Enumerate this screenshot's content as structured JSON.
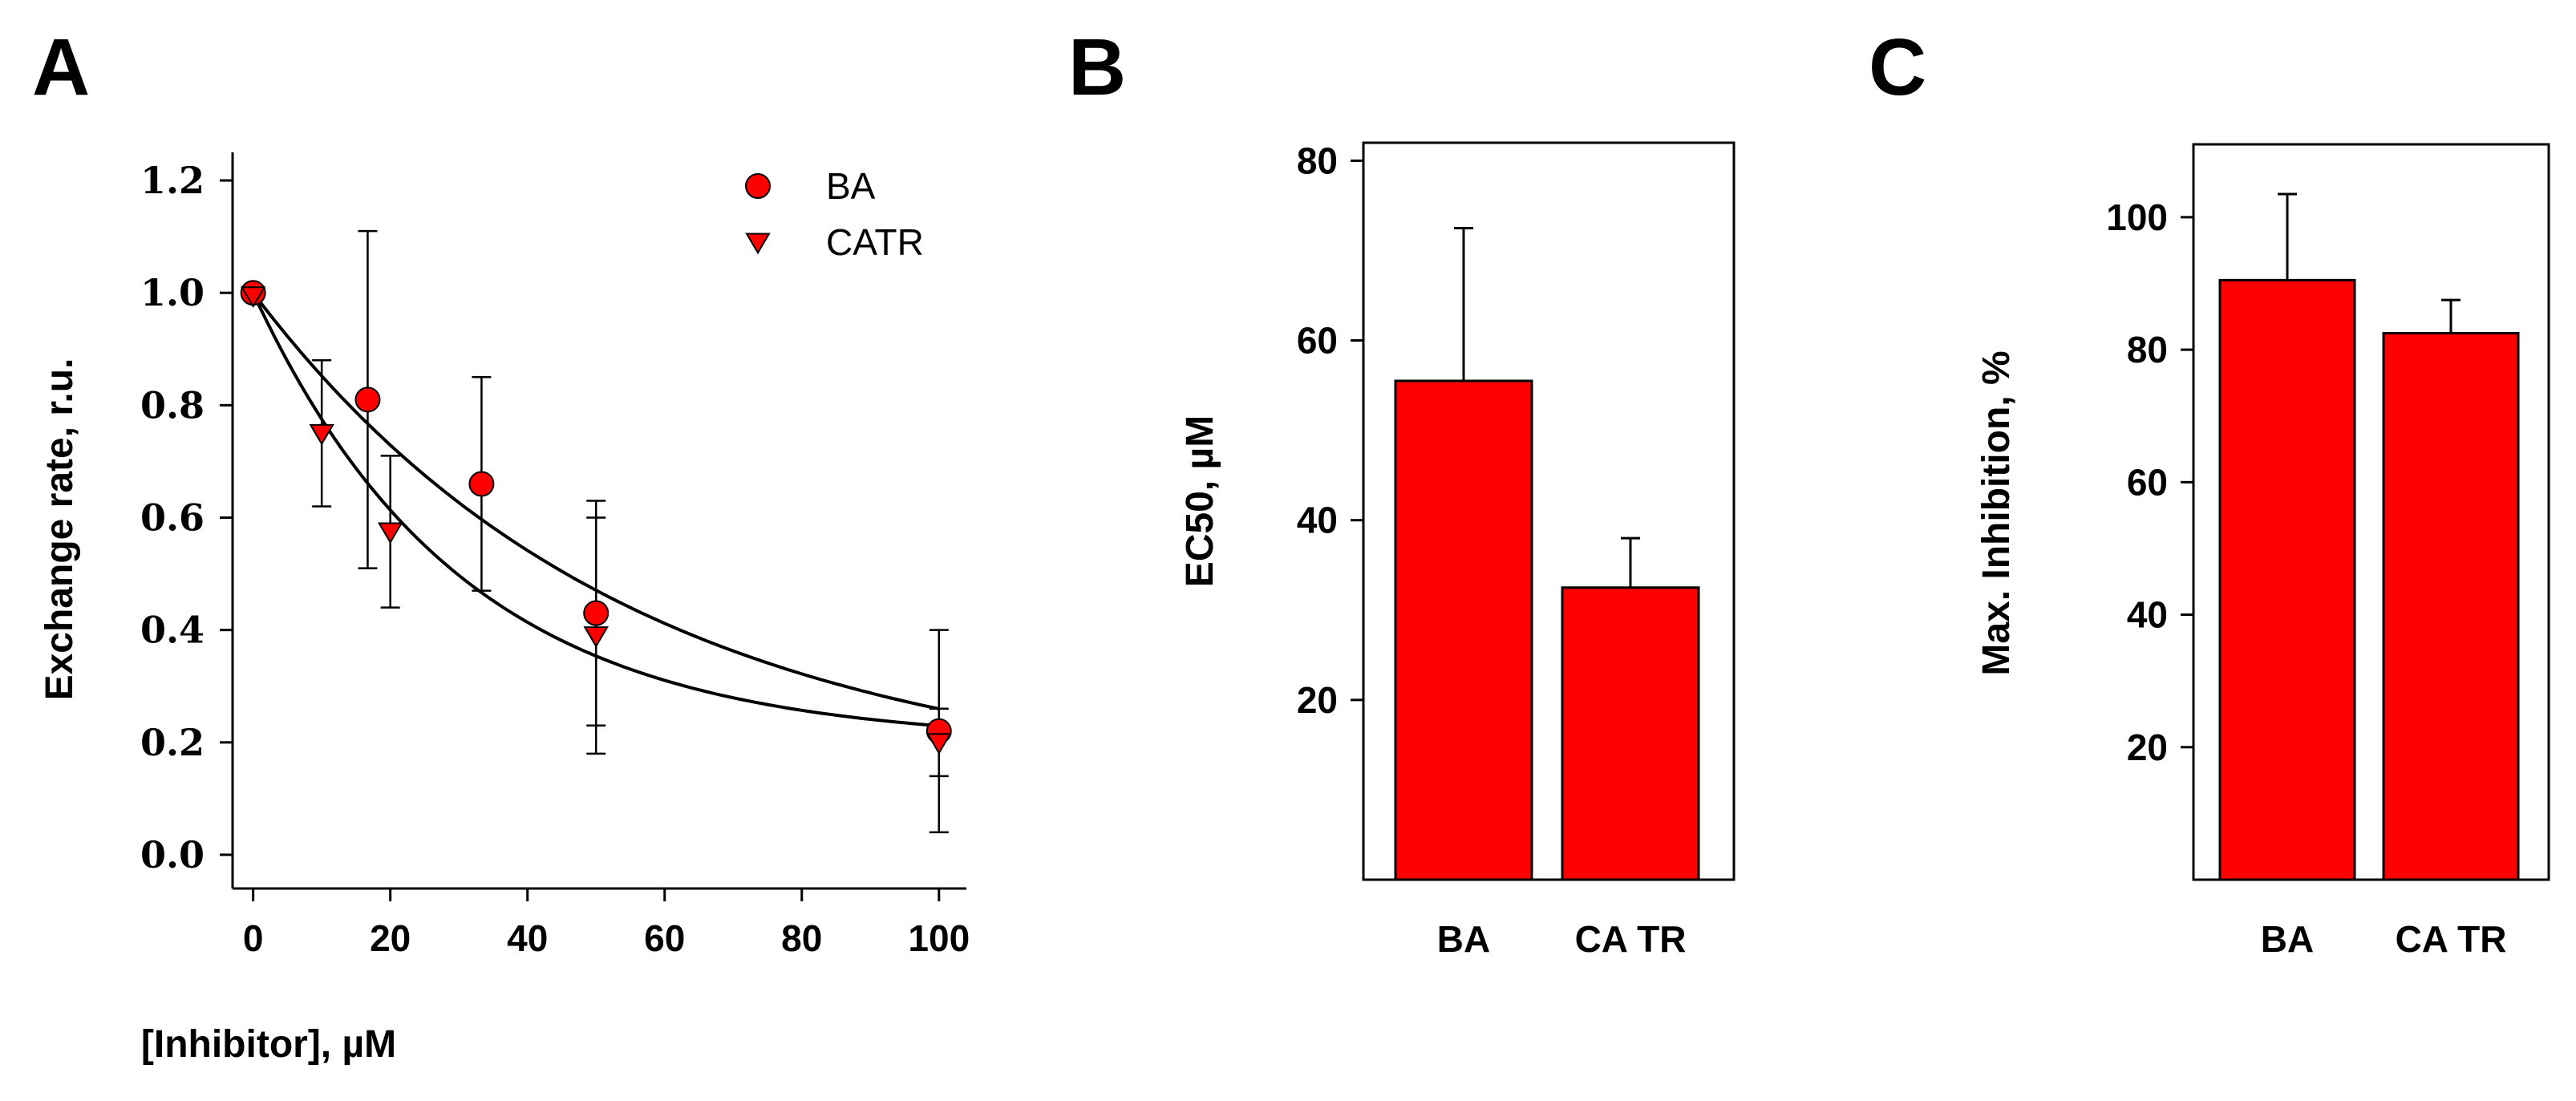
{
  "colors": {
    "marker": "#ff0000",
    "bar": "#ff0000",
    "axis": "#000000"
  },
  "chart_data": [
    {
      "panel": "A",
      "type": "scatter",
      "title": "",
      "xlabel": "[Inhibitor], µM",
      "ylabel": "Exchange rate, r.u.",
      "xlim": [
        -3,
        104
      ],
      "ylim": [
        -0.06,
        1.25
      ],
      "xticks": [
        "0",
        "20",
        "40",
        "60",
        "80",
        "100"
      ],
      "yticks": [
        "0.0",
        "0.2",
        "0.4",
        "0.6",
        "0.8",
        "1.0",
        "1.2"
      ],
      "legend_position": "top-right",
      "grid": false,
      "series": [
        {
          "name": "BA",
          "marker": "circle",
          "points": [
            {
              "x": 0,
              "y": 1.0,
              "err": 0
            },
            {
              "x": 16.7,
              "y": 0.81,
              "err": 0.3
            },
            {
              "x": 33.3,
              "y": 0.66,
              "err": 0.19
            },
            {
              "x": 50,
              "y": 0.43,
              "err": 0.2
            },
            {
              "x": 100,
              "y": 0.22,
              "err": 0.18
            }
          ],
          "fit": {
            "a": 0.88,
            "b": 0.12,
            "k": 0.0184
          }
        },
        {
          "name": "CATR",
          "marker": "triangle-down",
          "points": [
            {
              "x": 0,
              "y": 0.995,
              "err": 0
            },
            {
              "x": 10,
              "y": 0.75,
              "err": 0.13
            },
            {
              "x": 20,
              "y": 0.575,
              "err": 0.135
            },
            {
              "x": 50,
              "y": 0.39,
              "err": 0.21
            },
            {
              "x": 100,
              "y": 0.2,
              "err": 0.06
            }
          ],
          "fit": {
            "a": 0.8,
            "b": 0.2,
            "k": 0.033
          }
        }
      ]
    },
    {
      "panel": "B",
      "type": "bar",
      "title": "",
      "xlabel": "",
      "ylabel": "EC50, µM",
      "ylim": [
        0,
        82
      ],
      "yticks": [
        "20",
        "40",
        "60",
        "80"
      ],
      "categories": [
        "BA",
        "CA TR"
      ],
      "values": [
        55.5,
        32.5
      ],
      "errors": [
        17,
        5.5
      ]
    },
    {
      "panel": "C",
      "type": "bar",
      "title": "",
      "xlabel": "",
      "ylabel": "Max. Inhibition, %",
      "ylim": [
        0,
        111
      ],
      "yticks": [
        "20",
        "40",
        "60",
        "80",
        "100"
      ],
      "categories": [
        "BA",
        "CA TR"
      ],
      "values": [
        90.5,
        82.5
      ],
      "errors": [
        13,
        5
      ]
    }
  ]
}
